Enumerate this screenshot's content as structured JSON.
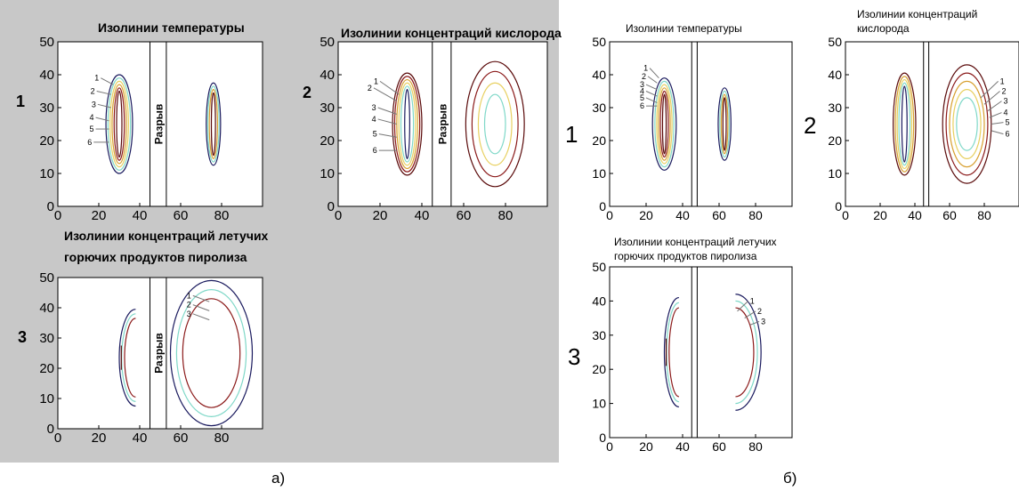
{
  "figure": {
    "panel_a_caption": "а)",
    "panel_b_caption": "б)",
    "gap_label": "Разрыв",
    "colors": {
      "panel_a_background": "#c8c8c8",
      "contour_dark_blue": "#1a1a5e",
      "contour_cyan": "#7fd8c8",
      "contour_yellow": "#e8d060",
      "contour_orange": "#d8a030",
      "contour_red": "#8b1a1a",
      "contour_dark_red": "#5a0a0a"
    }
  },
  "chart_data": [
    {
      "id": "a1",
      "panel": "а)",
      "type": "contour",
      "row_label": "1",
      "title": "Изолинии температуры",
      "xlim": [
        0,
        100
      ],
      "ylim": [
        0,
        50
      ],
      "x_ticks": [
        "0",
        "20",
        "40",
        "60",
        "80"
      ],
      "y_ticks": [
        "0",
        "10",
        "20",
        "30",
        "40",
        "50"
      ],
      "gap_x": [
        45,
        53
      ],
      "levels": [
        "1",
        "2",
        "3",
        "4",
        "5",
        "6"
      ]
    },
    {
      "id": "a2",
      "panel": "а)",
      "type": "contour",
      "row_label": "2",
      "title": "Изолинии концентраций кислорода",
      "xlim": [
        0,
        100
      ],
      "ylim": [
        0,
        50
      ],
      "x_ticks": [
        "0",
        "20",
        "40",
        "60",
        "80"
      ],
      "y_ticks": [
        "0",
        "10",
        "20",
        "30",
        "40",
        "50"
      ],
      "gap_x": [
        45,
        54
      ],
      "levels": [
        "1",
        "2",
        "3",
        "4",
        "5",
        "6"
      ]
    },
    {
      "id": "a3",
      "panel": "а)",
      "type": "contour",
      "row_label": "3",
      "title_lines": [
        "Изолинии концентраций летучих",
        "горючих продуктов пиролиза"
      ],
      "xlim": [
        0,
        100
      ],
      "ylim": [
        0,
        50
      ],
      "x_ticks": [
        "0",
        "20",
        "40",
        "60",
        "80"
      ],
      "y_ticks": [
        "0",
        "10",
        "20",
        "30",
        "40",
        "50"
      ],
      "gap_x": [
        45,
        53
      ],
      "levels": [
        "1",
        "2",
        "3"
      ]
    },
    {
      "id": "b1",
      "panel": "б)",
      "type": "contour",
      "row_label": "1",
      "title": "Изолинии температуры",
      "xlim": [
        0,
        100
      ],
      "ylim": [
        0,
        50
      ],
      "x_ticks": [
        "0",
        "20",
        "40",
        "60",
        "80"
      ],
      "y_ticks": [
        "0",
        "10",
        "20",
        "30",
        "40",
        "50"
      ],
      "gap_x": [
        45,
        48
      ],
      "levels": [
        "1",
        "2",
        "3",
        "4",
        "5",
        "6"
      ]
    },
    {
      "id": "b2",
      "panel": "б)",
      "type": "contour",
      "row_label": "2",
      "title_lines": [
        "Изолинии концентраций",
        "кислорода"
      ],
      "xlim": [
        0,
        100
      ],
      "ylim": [
        0,
        50
      ],
      "x_ticks": [
        "0",
        "20",
        "40",
        "60",
        "80"
      ],
      "y_ticks": [
        "0",
        "10",
        "20",
        "30",
        "40",
        "50"
      ],
      "gap_x": [
        45,
        48
      ],
      "levels": [
        "1",
        "2",
        "3",
        "4",
        "5",
        "6"
      ]
    },
    {
      "id": "b3",
      "panel": "б)",
      "type": "contour",
      "row_label": "3",
      "title_lines": [
        "Изолинии концентраций летучих",
        "горючих продуктов пиролиза"
      ],
      "xlim": [
        0,
        100
      ],
      "ylim": [
        0,
        50
      ],
      "x_ticks": [
        "0",
        "20",
        "40",
        "60",
        "80"
      ],
      "y_ticks": [
        "0",
        "10",
        "20",
        "30",
        "40",
        "50"
      ],
      "gap_x": [
        45,
        48
      ],
      "levels": [
        "1",
        "2",
        "3"
      ]
    }
  ]
}
